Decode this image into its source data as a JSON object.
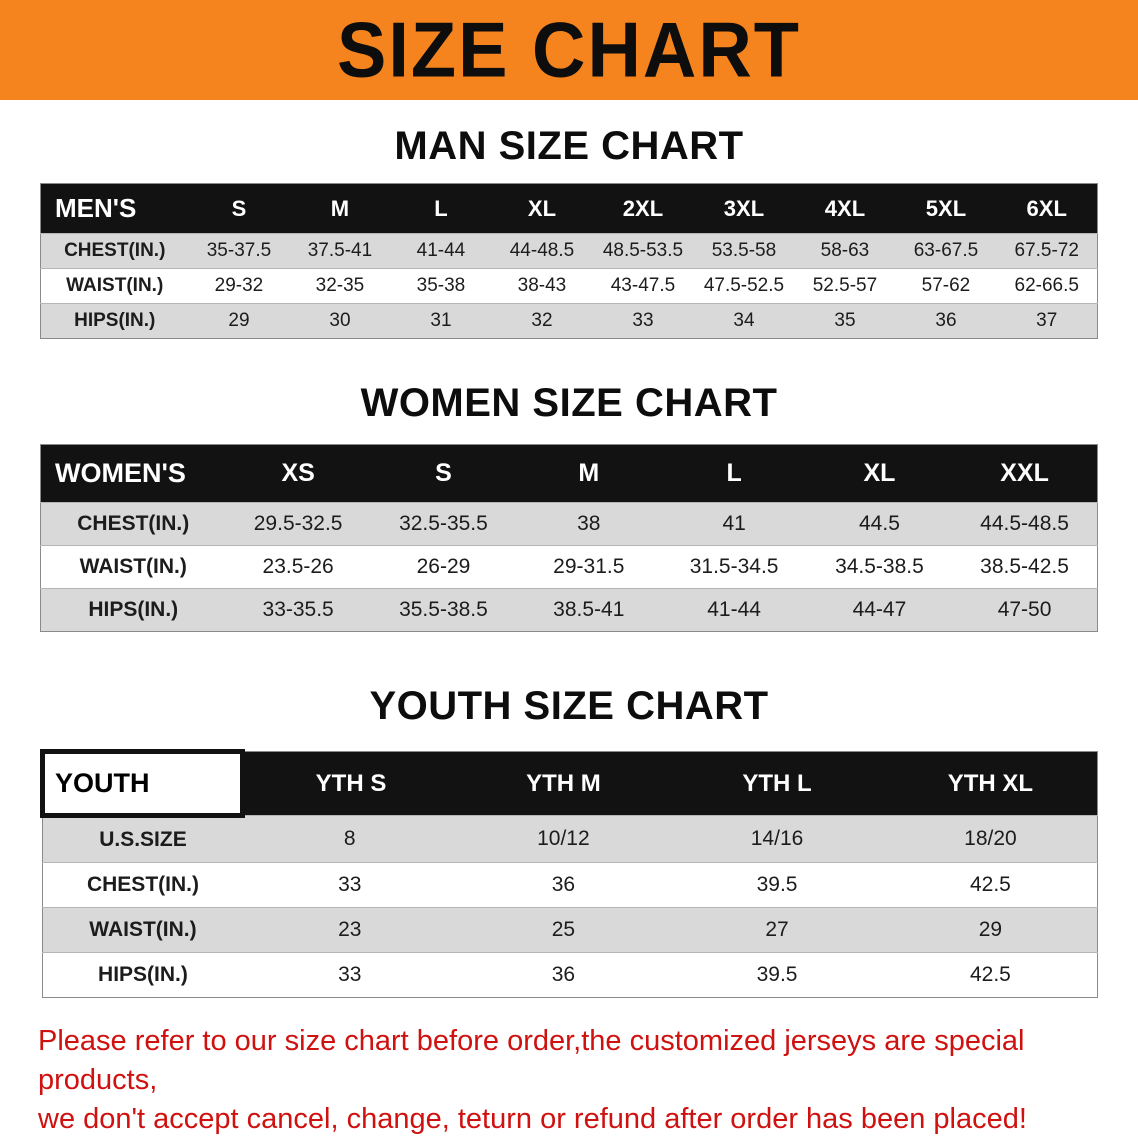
{
  "banner": {
    "title": "SIZE CHART"
  },
  "sections": {
    "men": {
      "heading": "MAN SIZE CHART",
      "table": {
        "header": [
          "MEN'S",
          "S",
          "M",
          "L",
          "XL",
          "2XL",
          "3XL",
          "4XL",
          "5XL",
          "6XL"
        ],
        "rows": [
          [
            "CHEST(IN.)",
            "35-37.5",
            "37.5-41",
            "41-44",
            "44-48.5",
            "48.5-53.5",
            "53.5-58",
            "58-63",
            "63-67.5",
            "67.5-72"
          ],
          [
            "WAIST(IN.)",
            "29-32",
            "32-35",
            "35-38",
            "38-43",
            "43-47.5",
            "47.5-52.5",
            "52.5-57",
            "57-62",
            "62-66.5"
          ],
          [
            "HIPS(IN.)",
            "29",
            "30",
            "31",
            "32",
            "33",
            "34",
            "35",
            "36",
            "37"
          ]
        ]
      }
    },
    "women": {
      "heading": "WOMEN SIZE CHART",
      "table": {
        "header": [
          "WOMEN'S",
          "XS",
          "S",
          "M",
          "L",
          "XL",
          "XXL"
        ],
        "rows": [
          [
            "CHEST(IN.)",
            "29.5-32.5",
            "32.5-35.5",
            "38",
            "41",
            "44.5",
            "44.5-48.5"
          ],
          [
            "WAIST(IN.)",
            "23.5-26",
            "26-29",
            "29-31.5",
            "31.5-34.5",
            "34.5-38.5",
            "38.5-42.5"
          ],
          [
            "HIPS(IN.)",
            "33-35.5",
            "35.5-38.5",
            "38.5-41",
            "41-44",
            "44-47",
            "47-50"
          ]
        ]
      }
    },
    "youth": {
      "heading": "YOUTH SIZE CHART",
      "table": {
        "header": [
          "YOUTH",
          "YTH S",
          "YTH M",
          "YTH L",
          "YTH XL"
        ],
        "rows": [
          [
            "U.S.SIZE",
            "8",
            "10/12",
            "14/16",
            "18/20"
          ],
          [
            "CHEST(IN.)",
            "33",
            "36",
            "39.5",
            "42.5"
          ],
          [
            "WAIST(IN.)",
            "23",
            "25",
            "27",
            "29"
          ],
          [
            "HIPS(IN.)",
            "33",
            "36",
            "39.5",
            "42.5"
          ]
        ]
      }
    }
  },
  "disclaimer": {
    "line1": "Please refer to our size chart before order,the customized jerseys are special products,",
    "line2": "we don't accept cancel, change, teturn or refund after order has been placed!"
  },
  "colors": {
    "banner_bg": "#f5841f",
    "header_bg": "#121212",
    "stripe": "#d9d9d9",
    "disclaimer_text": "#cf1110"
  }
}
